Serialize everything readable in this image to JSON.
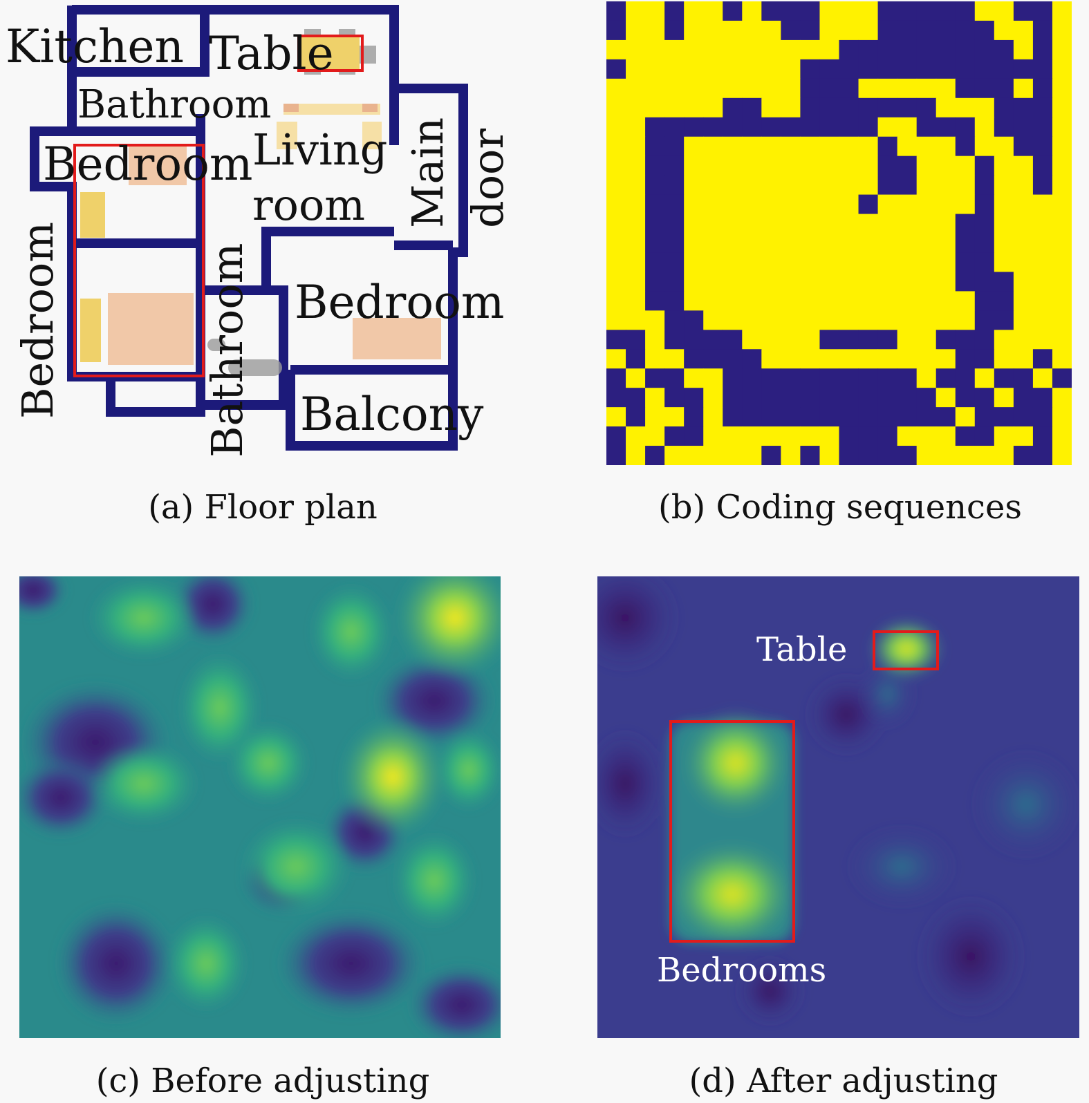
{
  "panels": {
    "a": {
      "caption": "(a) Floor plan",
      "labels": {
        "kitchen": "Kitchen",
        "table": "Table",
        "bathroom_top": "Bathroom",
        "bedroom_top": "Bedroom",
        "living": "Living",
        "room": "room",
        "main": "Main",
        "door": "door",
        "bedroom_left": "Bedroom",
        "bathroom_mid": "Bathroom",
        "bedroom_right": "Bedroom",
        "balcony": "Balcony"
      },
      "colors": {
        "wall": "#1c1a7a",
        "highlight": "#e21b1b",
        "bed": "#f1c8a8",
        "furniture": "#efd16a",
        "fixture": "#9a9a9a"
      }
    },
    "b": {
      "caption": "(b) Coding sequences",
      "colors": {
        "on": "#fff200",
        "off": "#2c1f80"
      },
      "grid_size": 24,
      "grid": [
        "011011010001110000011001",
        "011011111001110000001101",
        "111111111111000000000101",
        "011111111100000000000001",
        "111111111100011111000101",
        "111111001100000001110001",
        "110000000000001100010001",
        "110011111111110111011001",
        "110011111111110011101101",
        "110011111111110011101101",
        "110011111111101111101111",
        "110011111111111111001111",
        "110011111111111111001111",
        "110011111111111111001111",
        "110011111111111111000111",
        "110011111111111111100111",
        "111001111111111111100111",
        "001000011110000110001111",
        "101100001111111111001101",
        "010011000000000010010010",
        "001001000000000001001001",
        "101101000000000000100001",
        "011001111111000111001101",
        "010111110101000011111001"
      ]
    },
    "c": {
      "caption": "(c) Before adjusting"
    },
    "d": {
      "caption": "(d) After adjusting",
      "labels": {
        "table": "Table",
        "bedrooms": "Bedrooms"
      },
      "colors": {
        "box": "#e21b1b"
      }
    }
  }
}
